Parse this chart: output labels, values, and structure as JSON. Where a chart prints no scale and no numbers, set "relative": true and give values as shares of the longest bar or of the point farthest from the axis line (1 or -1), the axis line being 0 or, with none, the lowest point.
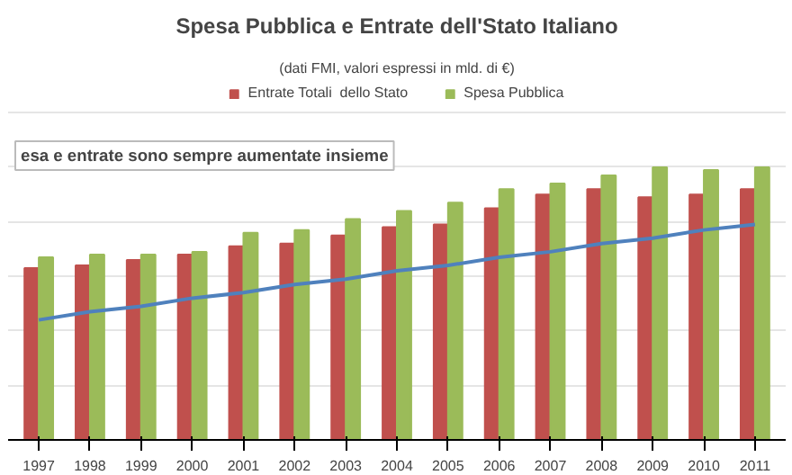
{
  "chart_data": {
    "type": "bar",
    "title": "Spesa Pubblica e Entrate dell'Stato Italiano",
    "subtitle": "(dati FMI, valori espressi in mld. di €)",
    "relative": true,
    "grid": "y",
    "legend": "top",
    "categories": [
      "1997",
      "1998",
      "1999",
      "2000",
      "2001",
      "2002",
      "2003",
      "2004",
      "2005",
      "2006",
      "2007",
      "2008",
      "2009",
      "2010",
      "2011"
    ],
    "series": [
      {
        "name": "Entrate Totali  dello Stato",
        "color": "#c0504d",
        "values": [
          0.63,
          0.64,
          0.66,
          0.68,
          0.71,
          0.72,
          0.75,
          0.78,
          0.79,
          0.85,
          0.9,
          0.92,
          0.89,
          0.9,
          0.92
        ]
      },
      {
        "name": "Spesa Pubblica",
        "color": "#9bbb59",
        "values": [
          0.67,
          0.68,
          0.68,
          0.69,
          0.76,
          0.77,
          0.81,
          0.84,
          0.87,
          0.92,
          0.94,
          0.97,
          1.0,
          0.99,
          1.0
        ]
      },
      {
        "type": "line",
        "color": "#4f81bd",
        "values": [
          0.44,
          0.47,
          0.49,
          0.52,
          0.54,
          0.57,
          0.59,
          0.62,
          0.64,
          0.67,
          0.69,
          0.72,
          0.74,
          0.77,
          0.79
        ]
      }
    ],
    "annotations": [
      "esa e entrate sono sempre aumentate insieme"
    ]
  }
}
